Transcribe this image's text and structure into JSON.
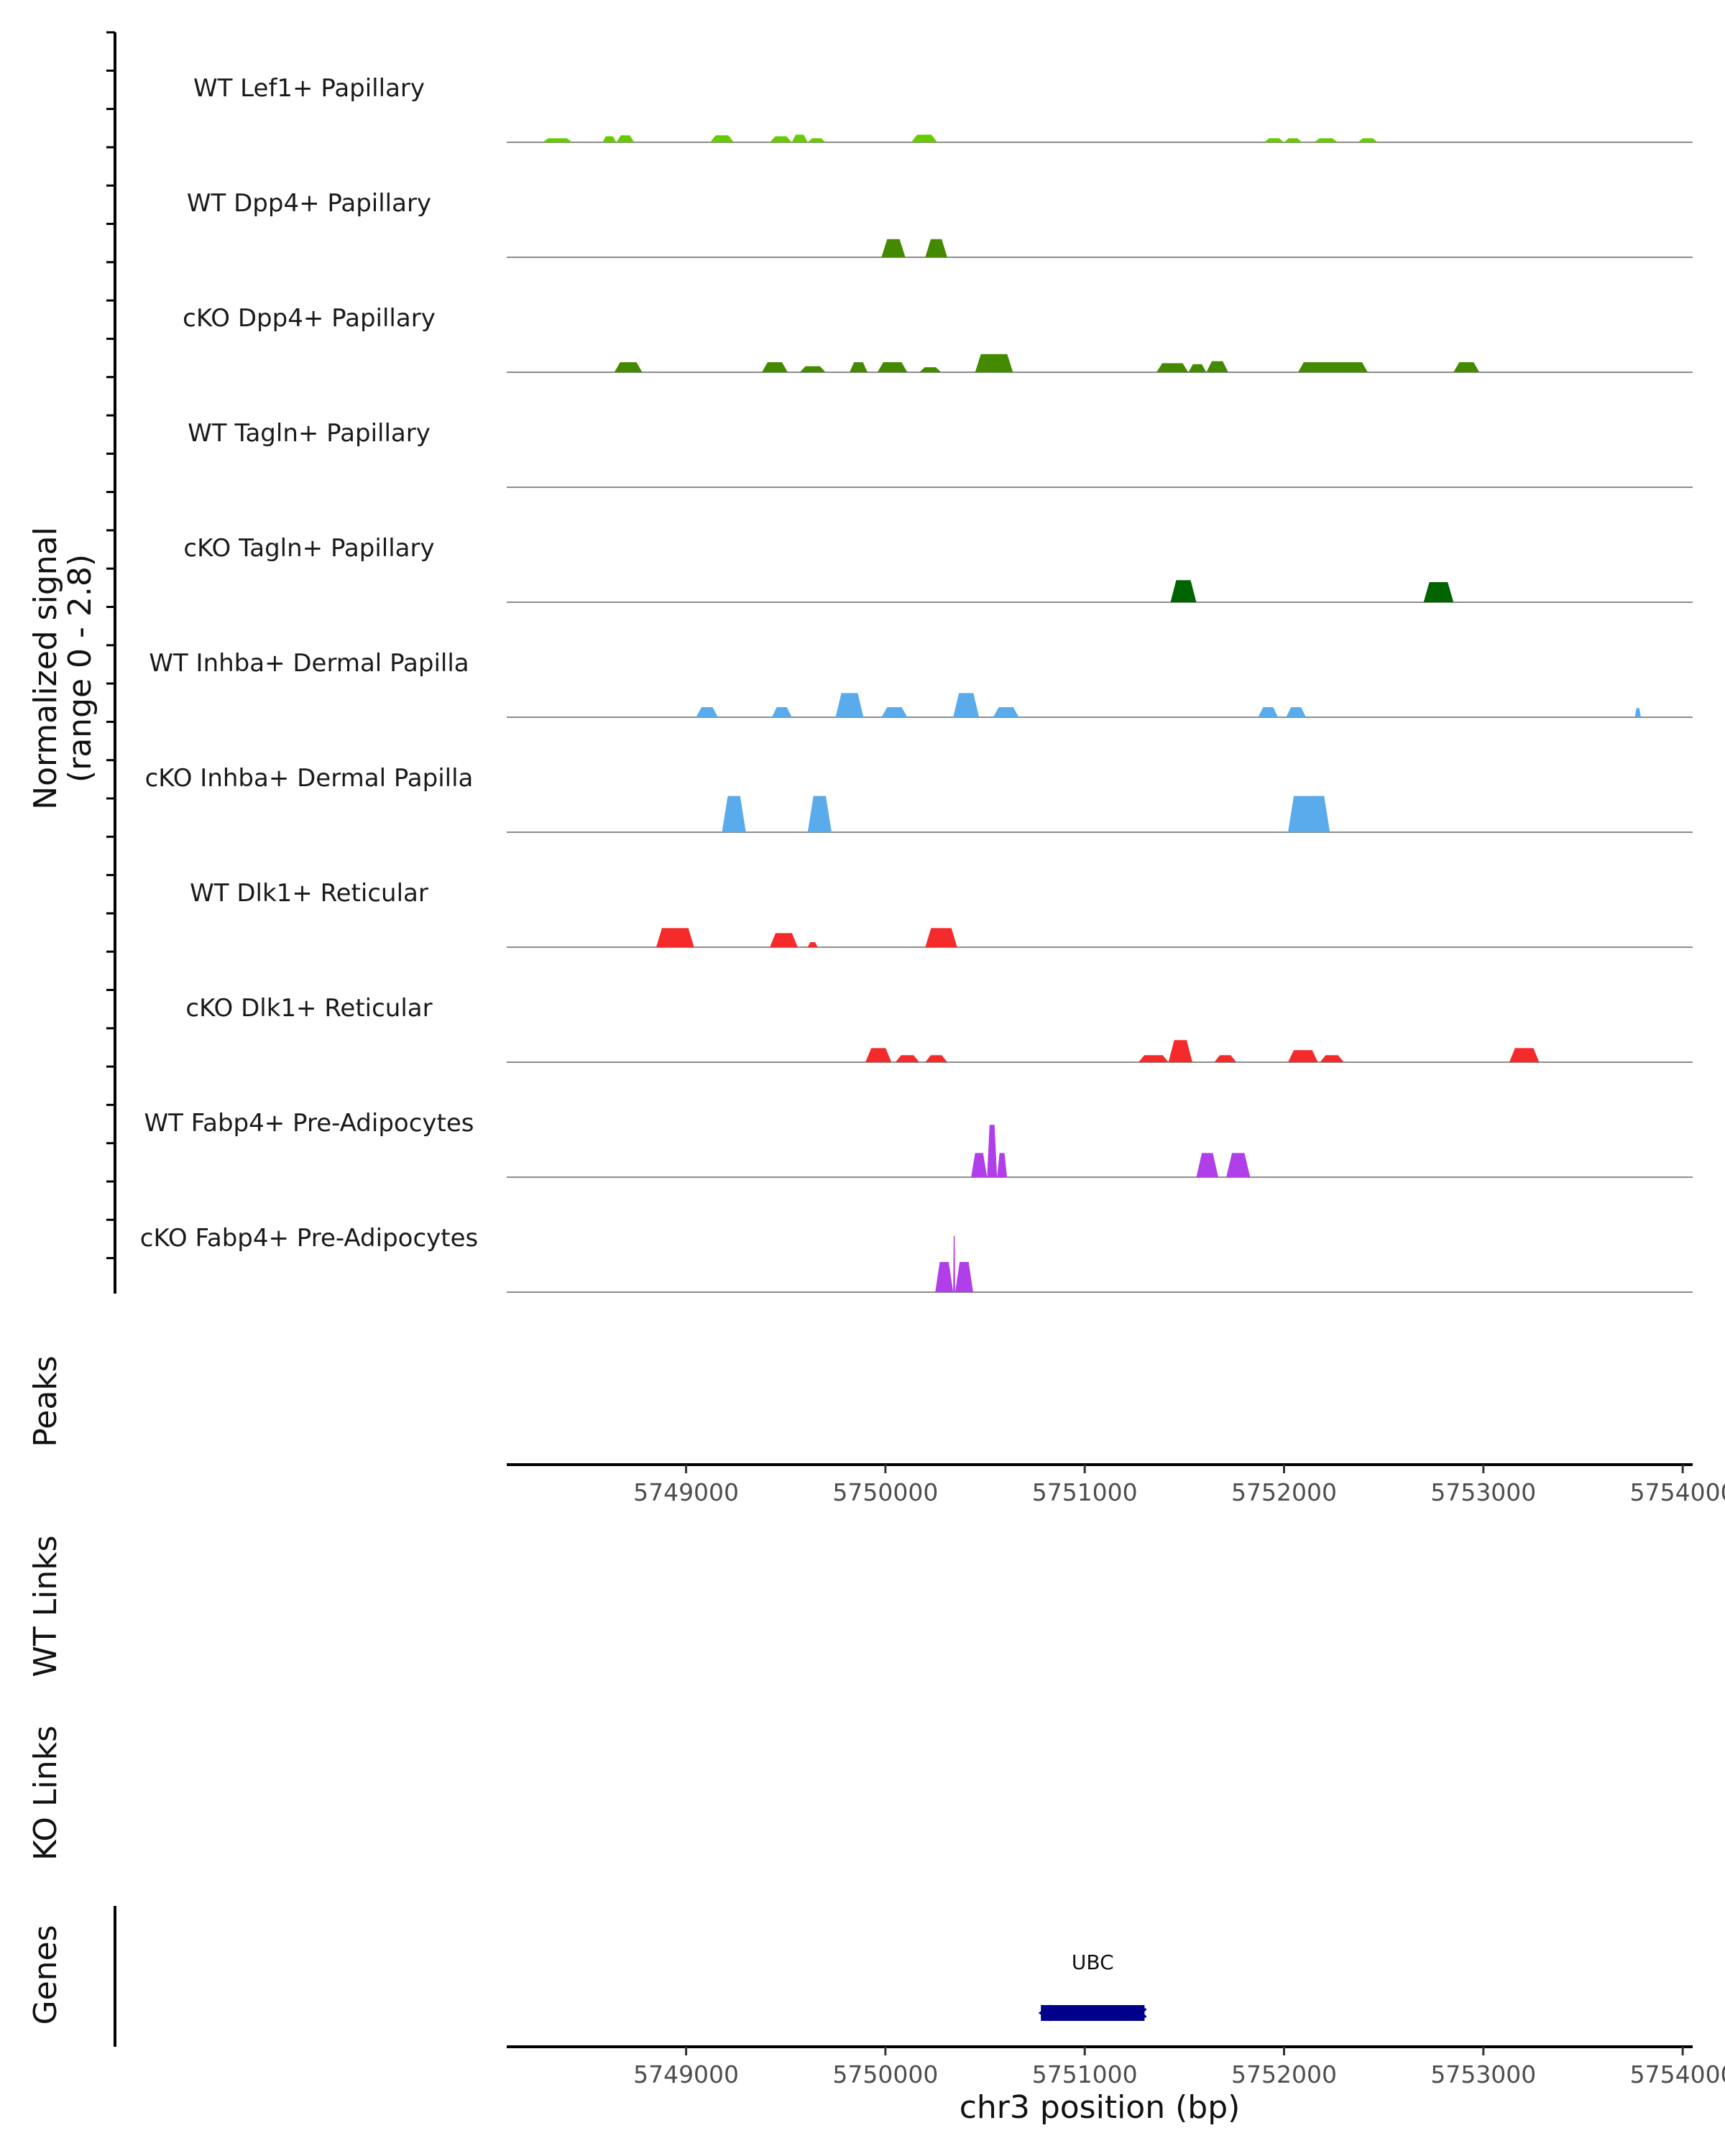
{
  "chart_data": {
    "type": "area",
    "title": "",
    "ylabel": "Normalized signal",
    "ylabel_range": "(range 0 - 2.8)",
    "ylim": [
      0,
      2.8
    ],
    "xlabel": "chr3 position (bp)",
    "xlim": [
      5748100,
      5754050
    ],
    "x_ticks": [
      5749000,
      5750000,
      5751000,
      5752000,
      5753000,
      5754000
    ],
    "x_tick_labels": [
      "5749000",
      "5750000",
      "5751000",
      "5752000",
      "5753000",
      "5754000"
    ],
    "panel_labels": {
      "peaks": "Peaks",
      "wt_links": "WT Links",
      "ko_links": "KO Links",
      "genes": "Genes"
    },
    "tracks": [
      {
        "name": "WT Lef1+ Papillary",
        "color": "#66cc00",
        "peaks": [
          [
            5748280,
            5748430,
            0.2
          ],
          [
            5748580,
            5748650,
            0.3
          ],
          [
            5748650,
            5748740,
            0.35
          ],
          [
            5749120,
            5749240,
            0.35
          ],
          [
            5749420,
            5749530,
            0.3
          ],
          [
            5749530,
            5749610,
            0.38
          ],
          [
            5749610,
            5749700,
            0.2
          ],
          [
            5750130,
            5750260,
            0.38
          ],
          [
            5751900,
            5752000,
            0.2
          ],
          [
            5752000,
            5752090,
            0.2
          ],
          [
            5752150,
            5752270,
            0.2
          ],
          [
            5752370,
            5752470,
            0.2
          ]
        ]
      },
      {
        "name": "WT Dpp4+ Papillary",
        "color": "#448a00",
        "peaks": [
          [
            5749980,
            5750100,
            0.9
          ],
          [
            5750200,
            5750310,
            0.9
          ]
        ]
      },
      {
        "name": "cKO Dpp4+ Papillary",
        "color": "#448a00",
        "peaks": [
          [
            5748640,
            5748780,
            0.5
          ],
          [
            5749380,
            5749510,
            0.5
          ],
          [
            5749570,
            5749700,
            0.3
          ],
          [
            5749820,
            5749910,
            0.5
          ],
          [
            5749960,
            5750110,
            0.5
          ],
          [
            5750170,
            5750280,
            0.25
          ],
          [
            5750450,
            5750640,
            0.9
          ],
          [
            5751360,
            5751520,
            0.45
          ],
          [
            5751520,
            5751610,
            0.4
          ],
          [
            5751610,
            5751720,
            0.55
          ],
          [
            5752070,
            5752420,
            0.5
          ],
          [
            5752850,
            5752980,
            0.5
          ]
        ]
      },
      {
        "name": "WT Tagln+ Papillary",
        "color": "#006400",
        "peaks": []
      },
      {
        "name": "cKO Tagln+ Papillary",
        "color": "#006400",
        "peaks": [
          [
            5751430,
            5751560,
            1.1
          ],
          [
            5752700,
            5752850,
            1.0
          ]
        ]
      },
      {
        "name": "WT Inhba+ Dermal Papilla",
        "color": "#5aabeb",
        "peaks": [
          [
            5749050,
            5749160,
            0.5
          ],
          [
            5749430,
            5749530,
            0.5
          ],
          [
            5749750,
            5749890,
            1.2
          ],
          [
            5749980,
            5750110,
            0.5
          ],
          [
            5750340,
            5750470,
            1.2
          ],
          [
            5750540,
            5750670,
            0.5
          ],
          [
            5751870,
            5751970,
            0.5
          ],
          [
            5752010,
            5752110,
            0.5
          ],
          [
            5753760,
            5753790,
            0.45
          ]
        ]
      },
      {
        "name": "cKO Inhba+ Dermal Papilla",
        "color": "#5aabeb",
        "peaks": [
          [
            5749180,
            5749300,
            1.8
          ],
          [
            5749610,
            5749730,
            1.8
          ],
          [
            5752020,
            5752230,
            1.8
          ]
        ]
      },
      {
        "name": "WT Dlk1+ Reticular",
        "color": "#f52a2a",
        "peaks": [
          [
            5748850,
            5749040,
            0.95
          ],
          [
            5749420,
            5749560,
            0.7
          ],
          [
            5749610,
            5749660,
            0.25
          ],
          [
            5750200,
            5750360,
            0.95
          ]
        ]
      },
      {
        "name": "cKO Dlk1+ Reticular",
        "color": "#f52a2a",
        "peaks": [
          [
            5749900,
            5750030,
            0.7
          ],
          [
            5750050,
            5750170,
            0.35
          ],
          [
            5750200,
            5750310,
            0.35
          ],
          [
            5751270,
            5751420,
            0.35
          ],
          [
            5751420,
            5751540,
            1.1
          ],
          [
            5751650,
            5751760,
            0.35
          ],
          [
            5752020,
            5752170,
            0.6
          ],
          [
            5752180,
            5752300,
            0.35
          ],
          [
            5753130,
            5753280,
            0.7
          ]
        ]
      },
      {
        "name": "WT Fabp4+ Pre-Adipocytes",
        "color": "#b03ee9",
        "peaks": [
          [
            5750430,
            5750510,
            1.2
          ],
          [
            5750510,
            5750560,
            2.6
          ],
          [
            5750560,
            5750610,
            1.2
          ],
          [
            5751560,
            5751670,
            1.2
          ],
          [
            5751710,
            5751830,
            1.2
          ]
        ]
      },
      {
        "name": "cKO Fabp4+ Pre-Adipocytes",
        "color": "#b03ee9",
        "peaks": [
          [
            5750250,
            5750340,
            1.5
          ],
          [
            5750340,
            5750350,
            2.8
          ],
          [
            5750350,
            5750440,
            1.5
          ]
        ]
      }
    ],
    "gene": {
      "name": "UBC",
      "start": 5750780,
      "end": 5751300,
      "strand": "-",
      "color": "#00008b"
    }
  }
}
